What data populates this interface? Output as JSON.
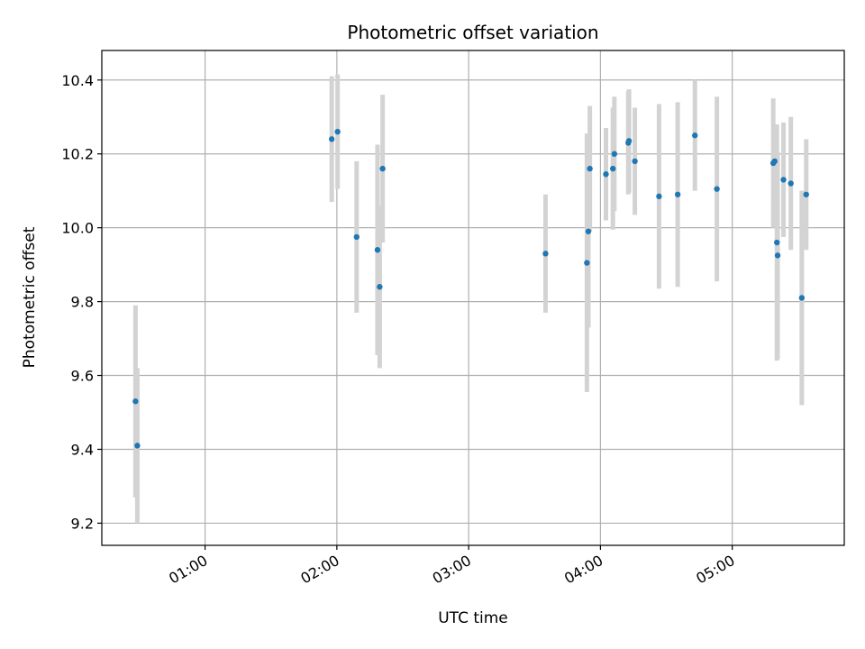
{
  "chart_data": {
    "type": "scatter",
    "title": "Photometric offset variation",
    "xlabel": "UTC time",
    "ylabel": "Photometric offset",
    "xlim": [
      "00:13",
      "05:51"
    ],
    "ylim": [
      9.14,
      10.48
    ],
    "xticks": [
      "01:00",
      "02:00",
      "03:00",
      "04:00",
      "05:00"
    ],
    "yticks": [
      "9.2",
      "9.4",
      "9.6",
      "9.8",
      "10.0",
      "10.2",
      "10.4"
    ],
    "grid": true,
    "colors": {
      "points": "#1f77b4",
      "errorbars": "#d3d3d3",
      "grid": "#b0b0b0"
    },
    "series": [
      {
        "points": [
          {
            "x": "00:28:20",
            "y": 9.53,
            "yerr": 0.26
          },
          {
            "x": "00:29:10",
            "y": 9.41,
            "yerr": 0.21
          },
          {
            "x": "01:57:40",
            "y": 10.24,
            "yerr": 0.17
          },
          {
            "x": "02:00:20",
            "y": 10.26,
            "yerr": 0.155
          },
          {
            "x": "02:09:00",
            "y": 9.975,
            "yerr": 0.205
          },
          {
            "x": "02:18:30",
            "y": 9.94,
            "yerr": 0.285
          },
          {
            "x": "02:19:30",
            "y": 9.84,
            "yerr": 0.22
          },
          {
            "x": "02:20:50",
            "y": 10.16,
            "yerr": 0.2
          },
          {
            "x": "03:35:00",
            "y": 9.93,
            "yerr": 0.16
          },
          {
            "x": "03:53:50",
            "y": 9.905,
            "yerr": 0.35
          },
          {
            "x": "03:54:30",
            "y": 9.99,
            "yerr": 0.26
          },
          {
            "x": "03:55:10",
            "y": 10.16,
            "yerr": 0.17
          },
          {
            "x": "04:02:30",
            "y": 10.145,
            "yerr": 0.125
          },
          {
            "x": "04:05:40",
            "y": 10.16,
            "yerr": 0.165
          },
          {
            "x": "04:06:20",
            "y": 10.2,
            "yerr": 0.155
          },
          {
            "x": "04:12:40",
            "y": 10.23,
            "yerr": 0.14
          },
          {
            "x": "04:13:00",
            "y": 10.235,
            "yerr": 0.14
          },
          {
            "x": "04:15:40",
            "y": 10.18,
            "yerr": 0.145
          },
          {
            "x": "04:26:40",
            "y": 10.085,
            "yerr": 0.25
          },
          {
            "x": "04:35:10",
            "y": 10.09,
            "yerr": 0.25
          },
          {
            "x": "04:43:00",
            "y": 10.25,
            "yerr": 0.15
          },
          {
            "x": "04:53:00",
            "y": 10.105,
            "yerr": 0.25
          },
          {
            "x": "05:18:40",
            "y": 10.175,
            "yerr": 0.175
          },
          {
            "x": "05:19:20",
            "y": 10.18,
            "yerr": 0.1
          },
          {
            "x": "05:20:20",
            "y": 9.96,
            "yerr": 0.32
          },
          {
            "x": "05:20:40",
            "y": 9.925,
            "yerr": 0.28
          },
          {
            "x": "05:23:20",
            "y": 10.13,
            "yerr": 0.155
          },
          {
            "x": "05:26:40",
            "y": 10.12,
            "yerr": 0.18
          },
          {
            "x": "05:31:40",
            "y": 9.81,
            "yerr": 0.29
          },
          {
            "x": "05:33:40",
            "y": 10.09,
            "yerr": 0.15
          }
        ]
      }
    ]
  }
}
